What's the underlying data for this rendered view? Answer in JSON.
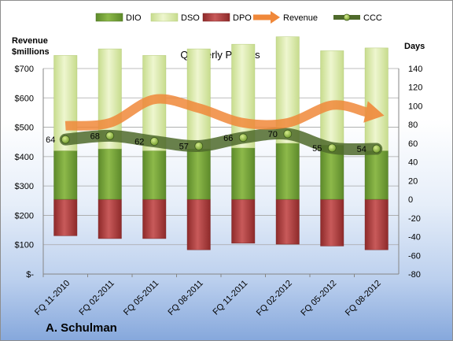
{
  "chart_data": {
    "type": "bar",
    "title": "Quarterly Periods",
    "company": "A. Schulman",
    "y_left_label": [
      "Revenue",
      "$millions"
    ],
    "y_right_label": "Days",
    "categories": [
      "FQ 11-2010",
      "FQ 02-2011",
      "FQ 05-2011",
      "FQ 08-2011",
      "FQ 11-2011",
      "FQ 02-2012",
      "FQ 05-2012",
      "FQ 08-2012"
    ],
    "left_axis": {
      "ticks": [
        "$-",
        "$100",
        "$200",
        "$300",
        "$400",
        "$500",
        "$600",
        "$700"
      ],
      "ylim": [
        0,
        700
      ]
    },
    "right_axis": {
      "ticks": [
        "-80",
        "-60",
        "-40",
        "-20",
        "0",
        "20",
        "40",
        "60",
        "80",
        "100",
        "120",
        "140"
      ],
      "ylim": [
        -80,
        140
      ]
    },
    "legend": [
      "DIO",
      "DSO",
      "DPO",
      "Revenue",
      "CCC"
    ],
    "legend_position": "top",
    "series": [
      {
        "name": "DIO",
        "axis": "days",
        "color": "#77a03a",
        "values": [
          52,
          54,
          52,
          54,
          55,
          60,
          58,
          52
        ]
      },
      {
        "name": "DSO",
        "axis": "days",
        "color": "#dcecae",
        "values": [
          102,
          107,
          102,
          107,
          111,
          114,
          101,
          110
        ]
      },
      {
        "name": "DPO",
        "axis": "days",
        "color": "#b23b3b",
        "values": [
          -39,
          -42,
          -42,
          -54,
          -47,
          -48,
          -50,
          -54
        ]
      },
      {
        "name": "Revenue",
        "axis": "money",
        "color": "#f0883a",
        "values": [
          505,
          515,
          595,
          565,
          515,
          515,
          575,
          545
        ]
      },
      {
        "name": "CCC",
        "axis": "days",
        "color": "#4f6a2b",
        "values": [
          64,
          68,
          62,
          57,
          66,
          70,
          55,
          54
        ]
      }
    ]
  }
}
